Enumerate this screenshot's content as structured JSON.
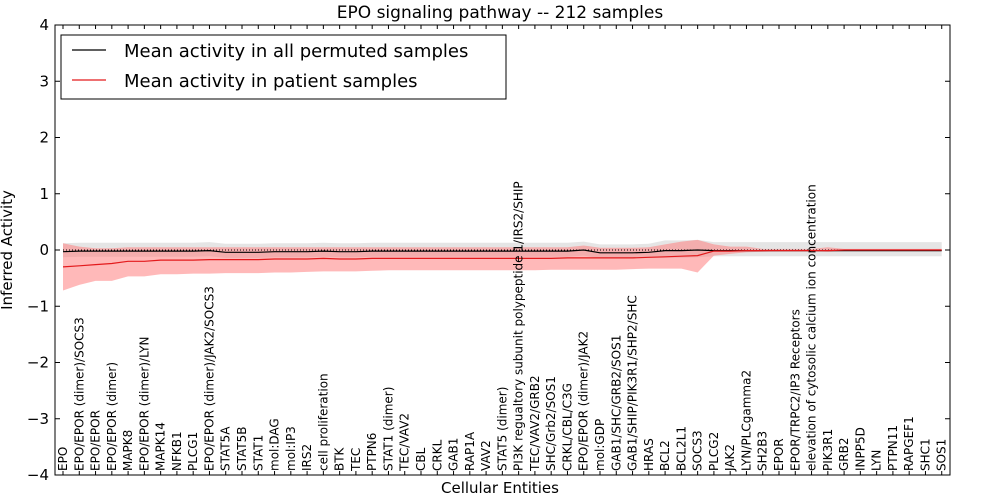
{
  "chart_data": {
    "type": "line",
    "title": "EPO signaling pathway -- 212 samples",
    "xlabel": "Cellular Entities",
    "ylabel": "Inferred Activity",
    "ylim": [
      -4,
      4
    ],
    "yticks": [
      "−4",
      "−3",
      "−2",
      "−1",
      "0",
      "1",
      "2",
      "3",
      "4"
    ],
    "legend_position": "top-left",
    "colors": {
      "permuted": "#000000",
      "permuted_band": "#d3d3d3",
      "patient": "#e31a1c",
      "patient_band": "#ff8080"
    },
    "categories": [
      "EPO",
      "EPO/EPOR (dimer)/SOCS3",
      "EPO/EPOR",
      "EPO/EPOR (dimer)",
      "MAPK8",
      "EPO/EPOR (dimer)/LYN",
      "MAPK14",
      "NFKB1",
      "PLCG1",
      "EPO/EPOR (dimer)/JAK2/SOCS3",
      "STAT5A",
      "STAT5B",
      "STAT1",
      "mol:DAG",
      "mol:IP3",
      "IRS2",
      "cell proliferation",
      "BTK",
      "TEC",
      "PTPN6",
      "STAT1 (dimer)",
      "TEC/VAV2",
      "CBL",
      "CRKL",
      "GAB1",
      "RAP1A",
      "VAV2",
      "STAT5 (dimer)",
      "PI3K regualtory subunit polypeptide 1/IRS2/SHIP",
      "TEC/VAV2/GRB2",
      "SHC/Grb2/SOS1",
      "CRKL/CBL/C3G",
      "EPO/EPOR (dimer)/JAK2",
      "mol:GDP",
      "GAB1/SHC/GRB2/SOS1",
      "GAB1/SHIP/PIK3R1/SHP2/SHC",
      "HRAS",
      "BCL2",
      "BCL2L1",
      "SOCS3",
      "PLCG2",
      "JAK2",
      "LYN/PLCgamma2",
      "SH2B3",
      "EPOR",
      "EPOR/TRPC2/IP3 Receptors",
      "elevation of cytosolic calcium ion concentration",
      "PIK3R1",
      "GRB2",
      "INPP5D",
      "LYN",
      "PTPN11",
      "RAPGEF1",
      "SHC1",
      "SOS1"
    ],
    "series": [
      {
        "name": "Mean activity in all permuted samples",
        "values": [
          -0.03,
          -0.02,
          -0.02,
          -0.02,
          -0.02,
          -0.02,
          -0.02,
          -0.02,
          -0.02,
          -0.01,
          -0.04,
          -0.04,
          -0.04,
          -0.03,
          -0.03,
          -0.03,
          -0.02,
          -0.03,
          -0.03,
          -0.02,
          -0.02,
          -0.02,
          -0.02,
          -0.02,
          -0.02,
          -0.02,
          -0.02,
          -0.02,
          -0.02,
          -0.02,
          -0.02,
          -0.02,
          0.0,
          -0.05,
          -0.05,
          -0.05,
          -0.04,
          -0.01,
          -0.01,
          0.0,
          -0.01,
          -0.01,
          -0.01,
          -0.01,
          -0.01,
          -0.01,
          -0.01,
          -0.01,
          -0.01,
          -0.01,
          -0.01,
          -0.01,
          -0.01,
          -0.01,
          -0.01
        ],
        "lower": [
          -0.13,
          -0.12,
          -0.12,
          -0.12,
          -0.12,
          -0.12,
          -0.12,
          -0.12,
          -0.12,
          -0.11,
          -0.14,
          -0.14,
          -0.14,
          -0.13,
          -0.13,
          -0.13,
          -0.12,
          -0.13,
          -0.13,
          -0.12,
          -0.12,
          -0.12,
          -0.12,
          -0.12,
          -0.12,
          -0.12,
          -0.12,
          -0.12,
          -0.12,
          -0.12,
          -0.12,
          -0.12,
          -0.1,
          -0.15,
          -0.15,
          -0.15,
          -0.14,
          -0.14,
          -0.14,
          -0.13,
          -0.11,
          -0.11,
          -0.11,
          -0.11,
          -0.11,
          -0.11,
          -0.11,
          -0.11,
          -0.11,
          -0.11,
          -0.11,
          -0.11,
          -0.11,
          -0.11,
          -0.11
        ],
        "upper": [
          0.12,
          0.13,
          0.13,
          0.13,
          0.13,
          0.13,
          0.13,
          0.13,
          0.13,
          0.14,
          0.11,
          0.11,
          0.11,
          0.12,
          0.12,
          0.12,
          0.13,
          0.12,
          0.12,
          0.13,
          0.13,
          0.13,
          0.13,
          0.13,
          0.13,
          0.13,
          0.13,
          0.13,
          0.13,
          0.13,
          0.13,
          0.13,
          0.15,
          0.1,
          0.1,
          0.1,
          0.11,
          0.17,
          0.17,
          0.18,
          0.14,
          0.14,
          0.14,
          0.14,
          0.14,
          0.14,
          0.14,
          0.14,
          0.14,
          0.14,
          0.14,
          0.14,
          0.14,
          0.14,
          0.14
        ]
      },
      {
        "name": "Mean activity in patient samples",
        "values": [
          -0.3,
          -0.28,
          -0.26,
          -0.24,
          -0.2,
          -0.2,
          -0.18,
          -0.18,
          -0.18,
          -0.17,
          -0.17,
          -0.17,
          -0.17,
          -0.16,
          -0.16,
          -0.16,
          -0.15,
          -0.16,
          -0.16,
          -0.15,
          -0.15,
          -0.15,
          -0.15,
          -0.15,
          -0.15,
          -0.15,
          -0.15,
          -0.15,
          -0.15,
          -0.15,
          -0.15,
          -0.14,
          -0.14,
          -0.14,
          -0.14,
          -0.14,
          -0.13,
          -0.12,
          -0.11,
          -0.1,
          -0.02,
          -0.02,
          -0.01,
          -0.01,
          -0.01,
          -0.01,
          -0.01,
          -0.01,
          0.0,
          0.0,
          0.0,
          0.0,
          0.0,
          0.0,
          0.0
        ],
        "lower": [
          -0.72,
          -0.62,
          -0.55,
          -0.55,
          -0.47,
          -0.47,
          -0.43,
          -0.43,
          -0.42,
          -0.42,
          -0.41,
          -0.41,
          -0.41,
          -0.4,
          -0.4,
          -0.39,
          -0.38,
          -0.38,
          -0.38,
          -0.37,
          -0.36,
          -0.36,
          -0.36,
          -0.36,
          -0.36,
          -0.36,
          -0.36,
          -0.36,
          -0.36,
          -0.36,
          -0.35,
          -0.35,
          -0.35,
          -0.35,
          -0.35,
          -0.34,
          -0.33,
          -0.33,
          -0.33,
          -0.4,
          -0.1,
          -0.07,
          -0.04,
          -0.03,
          -0.02,
          -0.02,
          -0.02,
          -0.03,
          -0.02,
          -0.02,
          -0.02,
          -0.02,
          -0.02,
          -0.02,
          -0.02
        ],
        "upper": [
          0.12,
          0.06,
          0.03,
          0.03,
          0.05,
          0.05,
          0.05,
          0.05,
          0.05,
          0.05,
          0.05,
          0.05,
          0.05,
          0.05,
          0.05,
          0.05,
          0.05,
          0.05,
          0.05,
          0.05,
          0.05,
          0.05,
          0.05,
          0.05,
          0.05,
          0.05,
          0.05,
          0.05,
          0.05,
          0.05,
          0.05,
          0.05,
          0.08,
          0.04,
          0.04,
          0.04,
          0.05,
          0.1,
          0.15,
          0.18,
          0.1,
          0.06,
          0.06,
          0.02,
          0.02,
          0.02,
          0.02,
          0.05,
          0.02,
          0.02,
          0.02,
          0.02,
          0.02,
          0.02,
          0.02
        ]
      }
    ]
  }
}
